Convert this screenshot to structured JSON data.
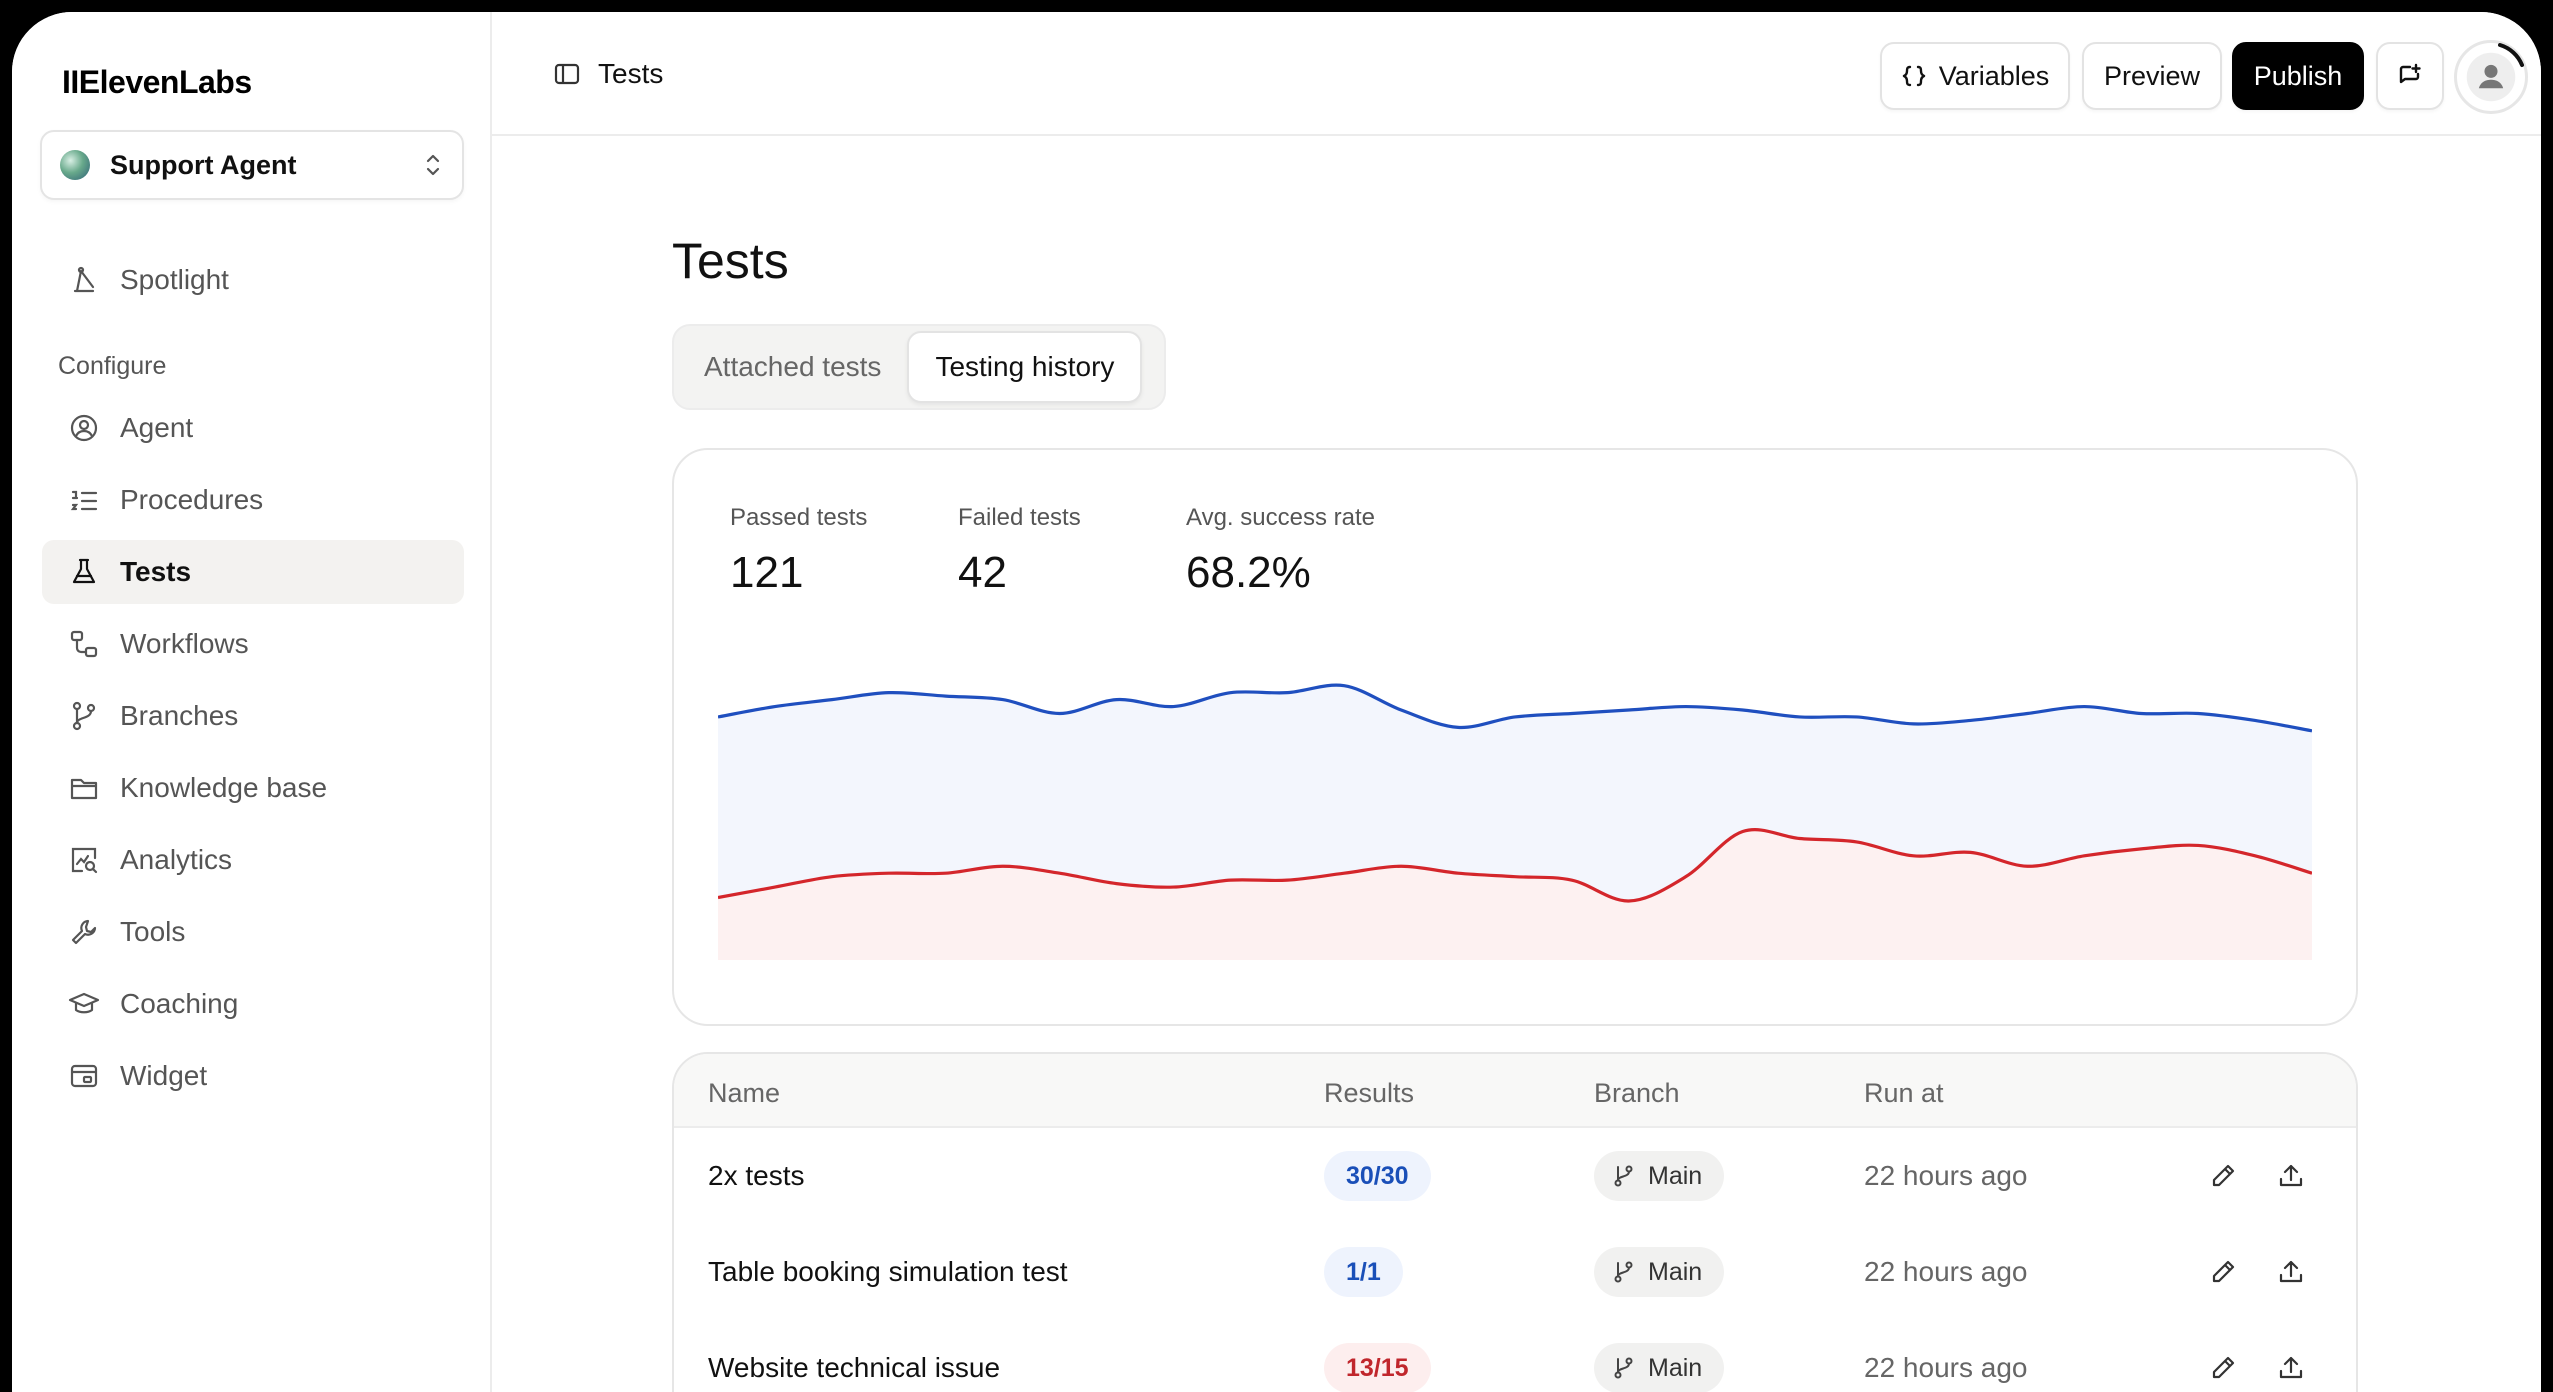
{
  "app": {
    "logo": "IIElevenLabs"
  },
  "agent": {
    "name": "Support Agent"
  },
  "sidebar": {
    "spotlight": "Spotlight",
    "section_label": "Configure",
    "items": [
      {
        "label": "Agent",
        "icon": "agent-icon"
      },
      {
        "label": "Procedures",
        "icon": "procedures-icon"
      },
      {
        "label": "Tests",
        "icon": "flask-icon",
        "active": true
      },
      {
        "label": "Workflows",
        "icon": "workflows-icon"
      },
      {
        "label": "Branches",
        "icon": "branch-icon"
      },
      {
        "label": "Knowledge base",
        "icon": "folder-icon"
      },
      {
        "label": "Analytics",
        "icon": "analytics-icon"
      },
      {
        "label": "Tools",
        "icon": "wrench-icon"
      },
      {
        "label": "Coaching",
        "icon": "graduation-cap-icon"
      },
      {
        "label": "Widget",
        "icon": "widget-icon"
      }
    ]
  },
  "header": {
    "crumb": "Tests",
    "variables_label": "Variables",
    "preview_label": "Preview",
    "publish_label": "Publish"
  },
  "main": {
    "title": "Tests",
    "tabs": [
      "Attached tests",
      "Testing history"
    ],
    "active_tab": "Testing history"
  },
  "stats": {
    "passed_label": "Passed tests",
    "passed_value": "121",
    "failed_label": "Failed tests",
    "failed_value": "42",
    "rate_label": "Avg. success rate",
    "rate_value": "68.2%"
  },
  "chart_data": {
    "type": "area",
    "title": "",
    "xlabel": "",
    "ylabel": "",
    "ylim": [
      0,
      100
    ],
    "grid": false,
    "series": [
      {
        "color": "#1f4fbf",
        "fill": "#f3f6fd",
        "values": [
          70,
          73,
          75,
          77,
          76,
          75,
          71,
          75,
          73,
          77,
          77,
          79,
          72,
          67,
          70,
          71,
          72,
          73,
          72,
          70,
          70,
          68,
          69,
          71,
          73,
          71,
          71,
          69,
          66
        ]
      },
      {
        "color": "#d4262b",
        "fill": "#fdf1f1",
        "values": [
          18,
          21,
          24,
          25,
          25,
          27,
          25,
          22,
          21,
          23,
          23,
          25,
          27,
          25,
          24,
          23,
          17,
          24,
          37,
          35,
          34,
          30,
          31,
          27,
          30,
          32,
          33,
          30,
          25
        ]
      }
    ]
  },
  "table": {
    "headers": {
      "name": "Name",
      "results": "Results",
      "branch": "Branch",
      "run_at": "Run at"
    },
    "rows": [
      {
        "name": "2x tests",
        "result": "30/30",
        "status": "pass",
        "branch": "Main",
        "run_at": "22 hours ago"
      },
      {
        "name": "Table booking simulation test",
        "result": "1/1",
        "status": "pass",
        "branch": "Main",
        "run_at": "22 hours ago"
      },
      {
        "name": "Website technical issue",
        "result": "13/15",
        "status": "fail",
        "branch": "Main",
        "run_at": "22 hours ago"
      }
    ]
  }
}
